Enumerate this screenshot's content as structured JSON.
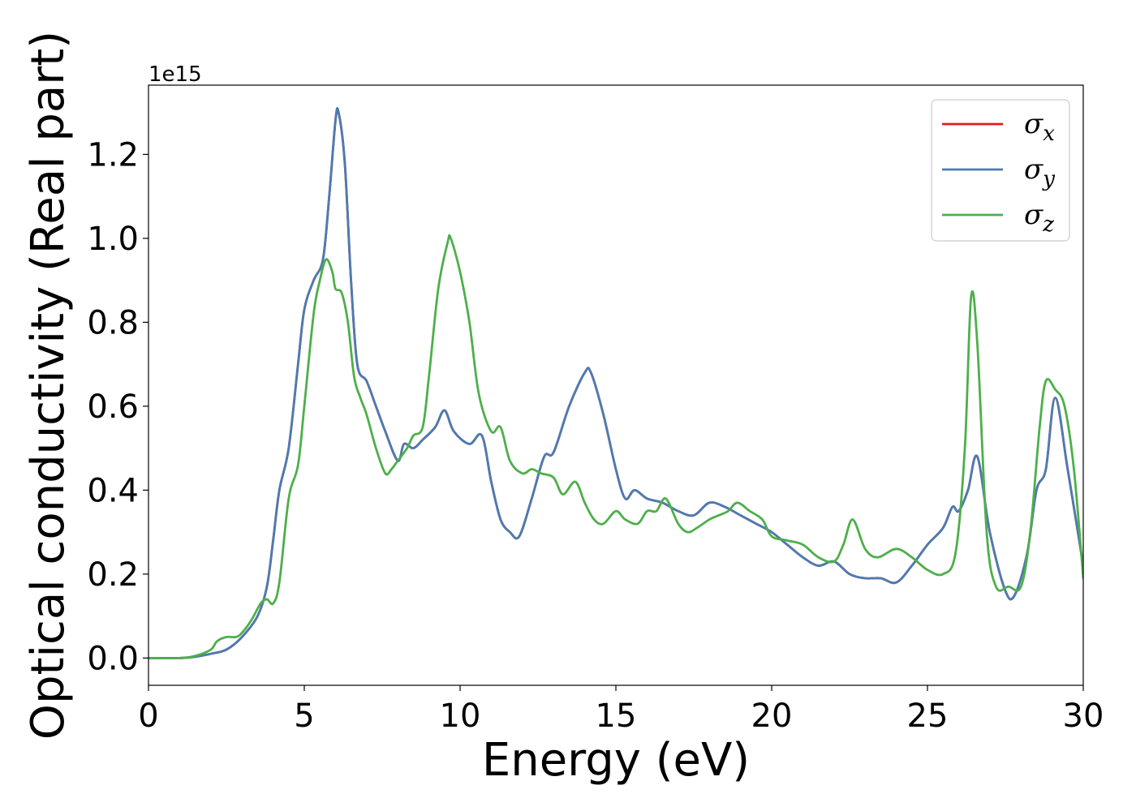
{
  "chart_data": {
    "type": "line",
    "xlabel": "Energy (eV)",
    "ylabel": "Optical conductivity (Real part)",
    "y_offset_label": "1e15",
    "xlim": [
      0,
      30
    ],
    "ylim": [
      -0.065,
      1.365
    ],
    "x_ticks": [
      0,
      5,
      10,
      15,
      20,
      25,
      30
    ],
    "y_ticks": [
      0.0,
      0.2,
      0.4,
      0.6,
      0.8,
      1.0,
      1.2
    ],
    "x_tick_labels": [
      "0",
      "5",
      "10",
      "15",
      "20",
      "25",
      "30"
    ],
    "y_tick_labels": [
      "0.0",
      "0.2",
      "0.4",
      "0.6",
      "0.8",
      "1.0",
      "1.2"
    ],
    "grid": false,
    "legend_position": "top-right",
    "series": [
      {
        "name": "σx",
        "symbol": "σ",
        "subscript": "x",
        "color": "#e41a1c",
        "x": [
          0,
          1,
          1.5,
          2,
          2.5,
          3,
          3.5,
          3.8,
          4,
          4.2,
          4.5,
          4.8,
          5,
          5.3,
          5.6,
          5.8,
          6,
          6.1,
          6.3,
          6.5,
          6.7,
          7,
          7.3,
          7.6,
          8,
          8.2,
          8.5,
          8.8,
          9.2,
          9.5,
          9.8,
          10.3,
          10.7,
          11,
          11.3,
          11.6,
          11.9,
          12.3,
          12.7,
          13,
          13.5,
          14,
          14.2,
          14.6,
          15,
          15.3,
          15.6,
          16,
          16.5,
          17,
          17.5,
          18,
          18.5,
          19,
          19.5,
          20,
          20.5,
          21,
          21.5,
          22,
          22.5,
          23,
          23.5,
          24,
          24.5,
          25,
          25.5,
          25.8,
          26,
          26.3,
          26.6,
          27,
          27.5,
          27.8,
          28.2,
          28.5,
          28.8,
          29.1,
          29.5,
          30
        ],
        "y": [
          0,
          0,
          0.003,
          0.01,
          0.02,
          0.05,
          0.1,
          0.17,
          0.28,
          0.4,
          0.5,
          0.7,
          0.83,
          0.9,
          0.95,
          1.1,
          1.28,
          1.3,
          1.18,
          0.9,
          0.7,
          0.66,
          0.6,
          0.54,
          0.47,
          0.51,
          0.5,
          0.52,
          0.55,
          0.59,
          0.54,
          0.51,
          0.53,
          0.42,
          0.33,
          0.3,
          0.29,
          0.38,
          0.48,
          0.49,
          0.6,
          0.68,
          0.68,
          0.58,
          0.45,
          0.38,
          0.4,
          0.38,
          0.37,
          0.35,
          0.34,
          0.37,
          0.36,
          0.34,
          0.32,
          0.3,
          0.27,
          0.24,
          0.22,
          0.23,
          0.2,
          0.19,
          0.19,
          0.18,
          0.22,
          0.27,
          0.31,
          0.36,
          0.35,
          0.4,
          0.48,
          0.3,
          0.16,
          0.15,
          0.25,
          0.4,
          0.45,
          0.62,
          0.45,
          0.22
        ]
      },
      {
        "name": "σy",
        "symbol": "σ",
        "subscript": "y",
        "color": "#4a7cb3",
        "x": [
          0,
          1,
          1.5,
          2,
          2.5,
          3,
          3.5,
          3.8,
          4,
          4.2,
          4.5,
          4.8,
          5,
          5.3,
          5.6,
          5.8,
          6,
          6.1,
          6.3,
          6.5,
          6.7,
          7,
          7.3,
          7.6,
          8,
          8.2,
          8.5,
          8.8,
          9.2,
          9.5,
          9.8,
          10.3,
          10.7,
          11,
          11.3,
          11.6,
          11.9,
          12.3,
          12.7,
          13,
          13.5,
          14,
          14.2,
          14.6,
          15,
          15.3,
          15.6,
          16,
          16.5,
          17,
          17.5,
          18,
          18.5,
          19,
          19.5,
          20,
          20.5,
          21,
          21.5,
          22,
          22.5,
          23,
          23.5,
          24,
          24.5,
          25,
          25.5,
          25.8,
          26,
          26.3,
          26.6,
          27,
          27.5,
          27.8,
          28.2,
          28.5,
          28.8,
          29.1,
          29.5,
          30
        ],
        "y": [
          0,
          0,
          0.003,
          0.01,
          0.02,
          0.05,
          0.1,
          0.17,
          0.28,
          0.4,
          0.5,
          0.7,
          0.83,
          0.9,
          0.95,
          1.1,
          1.28,
          1.3,
          1.18,
          0.9,
          0.7,
          0.66,
          0.6,
          0.54,
          0.47,
          0.51,
          0.5,
          0.52,
          0.55,
          0.59,
          0.54,
          0.51,
          0.53,
          0.42,
          0.33,
          0.3,
          0.29,
          0.38,
          0.48,
          0.49,
          0.6,
          0.68,
          0.68,
          0.58,
          0.45,
          0.38,
          0.4,
          0.38,
          0.37,
          0.35,
          0.34,
          0.37,
          0.36,
          0.34,
          0.32,
          0.3,
          0.27,
          0.24,
          0.22,
          0.23,
          0.2,
          0.19,
          0.19,
          0.18,
          0.22,
          0.27,
          0.31,
          0.36,
          0.35,
          0.4,
          0.48,
          0.3,
          0.16,
          0.15,
          0.25,
          0.4,
          0.45,
          0.62,
          0.45,
          0.22
        ]
      },
      {
        "name": "σz",
        "symbol": "σ",
        "subscript": "z",
        "color": "#4daf4a",
        "x": [
          0,
          1,
          1.5,
          2,
          2.2,
          2.5,
          2.8,
          3,
          3.3,
          3.6,
          3.8,
          4,
          4.2,
          4.5,
          4.8,
          5,
          5.3,
          5.5,
          5.7,
          5.9,
          6,
          6.2,
          6.4,
          6.6,
          6.8,
          7,
          7.3,
          7.6,
          7.8,
          8,
          8.3,
          8.5,
          8.8,
          9,
          9.3,
          9.6,
          9.7,
          10,
          10.3,
          10.6,
          11,
          11.3,
          11.6,
          12,
          12.3,
          12.6,
          13,
          13.3,
          13.7,
          14,
          14.3,
          14.6,
          15,
          15.3,
          15.7,
          16,
          16.3,
          16.6,
          17,
          17.3,
          17.6,
          18,
          18.3,
          18.6,
          18.9,
          19.3,
          19.7,
          20,
          20.5,
          21,
          21.5,
          22,
          22.3,
          22.6,
          23,
          23.4,
          24,
          24.5,
          25,
          25.5,
          25.9,
          26.2,
          26.4,
          26.6,
          26.9,
          27.2,
          27.6,
          28,
          28.3,
          28.6,
          28.8,
          29.1,
          29.4,
          29.7,
          30
        ],
        "y": [
          0,
          0,
          0.005,
          0.02,
          0.04,
          0.05,
          0.05,
          0.06,
          0.09,
          0.13,
          0.14,
          0.13,
          0.18,
          0.38,
          0.46,
          0.6,
          0.82,
          0.9,
          0.95,
          0.92,
          0.88,
          0.87,
          0.8,
          0.67,
          0.62,
          0.58,
          0.5,
          0.44,
          0.45,
          0.47,
          0.5,
          0.53,
          0.55,
          0.67,
          0.88,
          0.99,
          1.0,
          0.92,
          0.8,
          0.63,
          0.54,
          0.55,
          0.47,
          0.44,
          0.45,
          0.44,
          0.43,
          0.39,
          0.42,
          0.37,
          0.33,
          0.32,
          0.35,
          0.33,
          0.32,
          0.35,
          0.35,
          0.38,
          0.32,
          0.3,
          0.31,
          0.33,
          0.34,
          0.35,
          0.37,
          0.35,
          0.33,
          0.29,
          0.28,
          0.27,
          0.24,
          0.23,
          0.27,
          0.33,
          0.26,
          0.24,
          0.26,
          0.24,
          0.21,
          0.2,
          0.25,
          0.5,
          0.86,
          0.75,
          0.3,
          0.17,
          0.17,
          0.17,
          0.3,
          0.55,
          0.66,
          0.64,
          0.6,
          0.45,
          0.19
        ]
      }
    ]
  }
}
